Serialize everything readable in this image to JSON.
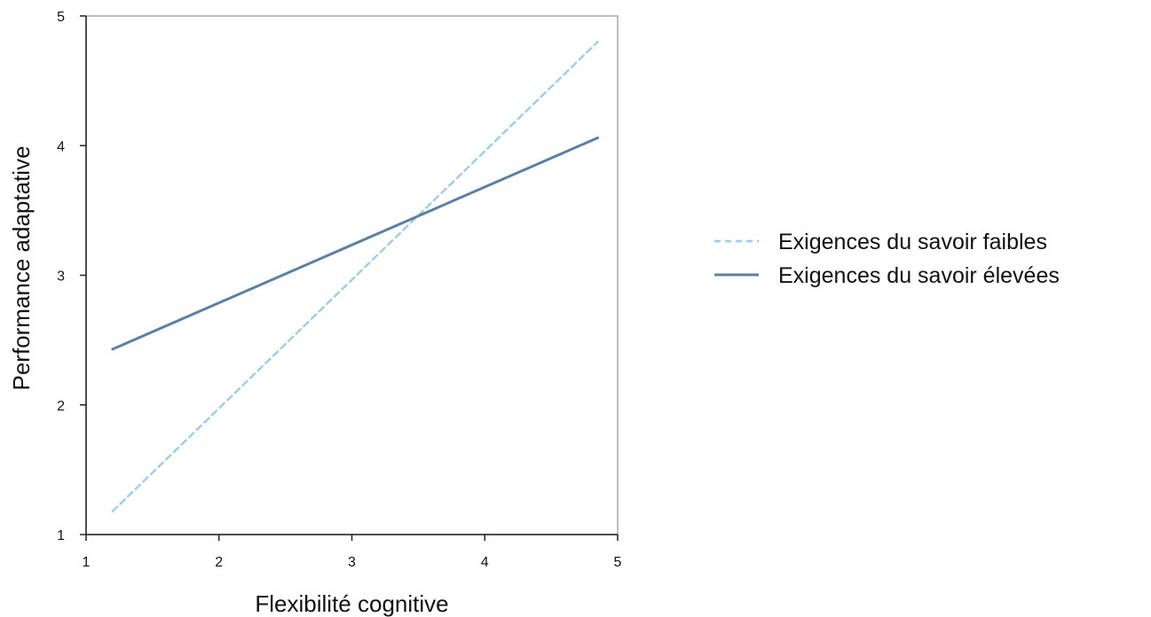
{
  "chart_data": {
    "type": "line",
    "title": "",
    "xlabel": "Flexibilité cognitive",
    "ylabel": "Performance adaptative",
    "xlim": [
      1,
      5
    ],
    "ylim": [
      1,
      5
    ],
    "xticks": [
      1,
      2,
      3,
      4,
      5
    ],
    "yticks": [
      1,
      2,
      3,
      4,
      5
    ],
    "grid": false,
    "legend_position": "right",
    "series": [
      {
        "name": "Exigences du savoir faibles",
        "style": "dashed",
        "color": "#9ecbe8",
        "x": [
          1.2,
          4.85
        ],
        "y": [
          1.18,
          4.8
        ]
      },
      {
        "name": "Exigences du savoir élevées",
        "style": "solid",
        "color": "#5a80a6",
        "x": [
          1.2,
          4.85
        ],
        "y": [
          2.43,
          4.06
        ]
      }
    ]
  }
}
